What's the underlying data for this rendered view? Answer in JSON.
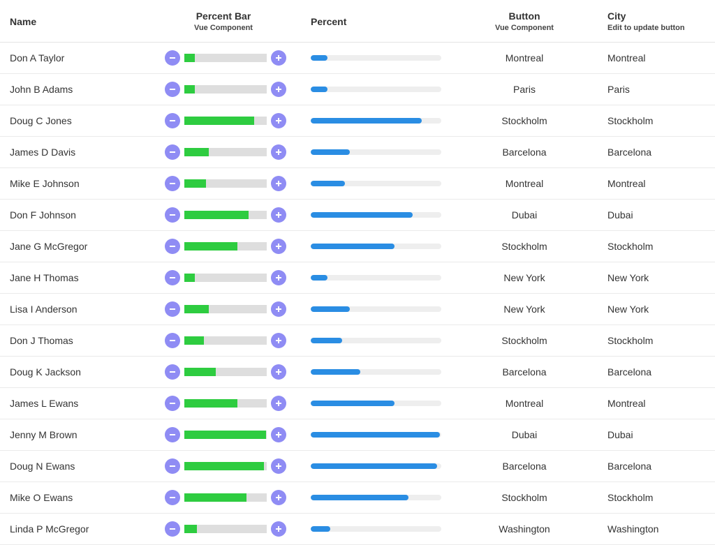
{
  "header": {
    "name": "Name",
    "percent_bar": "Percent Bar",
    "percent_bar_sub": "Vue Component",
    "percent": "Percent",
    "button": "Button",
    "button_sub": "Vue Component",
    "city": "City",
    "city_sub": "Edit to update button"
  },
  "colors": {
    "stepper_button": "#8f8cf4",
    "percent_bar_fill": "#2ecc40",
    "percent_fill": "#2a8de3"
  },
  "icons": {
    "decrement": "minus-icon",
    "increment": "plus-icon"
  },
  "rows": [
    {
      "name": "Don A Taylor",
      "percent": 13,
      "button": "Montreal",
      "city": "Montreal"
    },
    {
      "name": "John B Adams",
      "percent": 13,
      "button": "Paris",
      "city": "Paris"
    },
    {
      "name": "Doug C Jones",
      "percent": 85,
      "button": "Stockholm",
      "city": "Stockholm"
    },
    {
      "name": "James D Davis",
      "percent": 30,
      "button": "Barcelona",
      "city": "Barcelona"
    },
    {
      "name": "Mike E Johnson",
      "percent": 26,
      "button": "Montreal",
      "city": "Montreal"
    },
    {
      "name": "Don F Johnson",
      "percent": 78,
      "button": "Dubai",
      "city": "Dubai"
    },
    {
      "name": "Jane G McGregor",
      "percent": 64,
      "button": "Stockholm",
      "city": "Stockholm"
    },
    {
      "name": "Jane H Thomas",
      "percent": 13,
      "button": "New York",
      "city": "New York"
    },
    {
      "name": "Lisa I Anderson",
      "percent": 30,
      "button": "New York",
      "city": "New York"
    },
    {
      "name": "Don J Thomas",
      "percent": 24,
      "button": "Stockholm",
      "city": "Stockholm"
    },
    {
      "name": "Doug K Jackson",
      "percent": 38,
      "button": "Barcelona",
      "city": "Barcelona"
    },
    {
      "name": "James L Ewans",
      "percent": 64,
      "button": "Montreal",
      "city": "Montreal"
    },
    {
      "name": "Jenny M Brown",
      "percent": 99,
      "button": "Dubai",
      "city": "Dubai"
    },
    {
      "name": "Doug N Ewans",
      "percent": 97,
      "button": "Barcelona",
      "city": "Barcelona"
    },
    {
      "name": "Mike O Ewans",
      "percent": 75,
      "button": "Stockholm",
      "city": "Stockholm"
    },
    {
      "name": "Linda P McGregor",
      "percent": 15,
      "button": "Washington",
      "city": "Washington"
    }
  ]
}
